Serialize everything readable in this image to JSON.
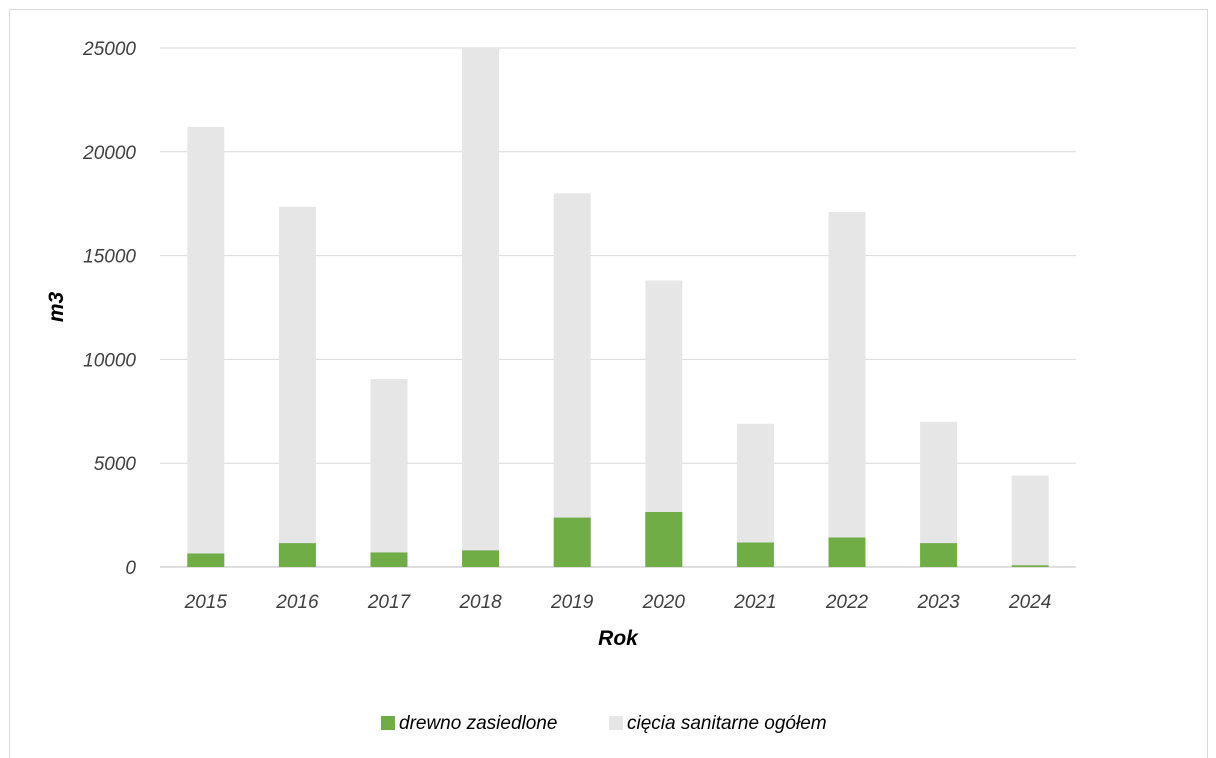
{
  "chart_data": {
    "type": "bar",
    "stacked": false,
    "overlap": true,
    "title": "",
    "xlabel": "Rok",
    "ylabel": "m3",
    "ylim": [
      0,
      25000
    ],
    "yticks": [
      0,
      5000,
      10000,
      15000,
      20000,
      25000
    ],
    "grid": true,
    "legend_position": "bottom",
    "categories": [
      "2015",
      "2016",
      "2017",
      "2018",
      "2019",
      "2020",
      "2021",
      "2022",
      "2023",
      "2024"
    ],
    "series": [
      {
        "name": "cięcia sanitarne ogółem",
        "color": "#e6e6e6",
        "values": [
          21200,
          17350,
          9050,
          25000,
          18000,
          13800,
          6900,
          17100,
          7000,
          4400
        ]
      },
      {
        "name": "drewno zasiedlone",
        "color": "#70ad47",
        "values": [
          650,
          1150,
          700,
          800,
          2380,
          2650,
          1180,
          1420,
          1150,
          80
        ]
      }
    ]
  }
}
